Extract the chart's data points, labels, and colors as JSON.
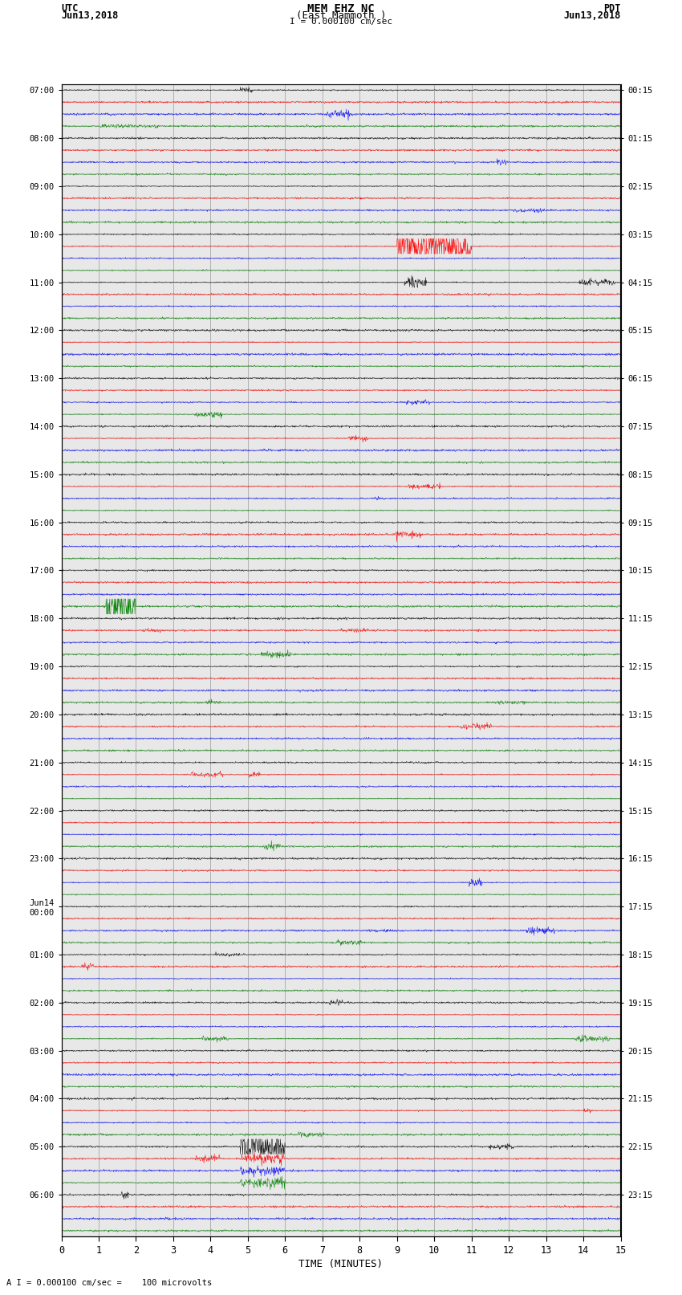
{
  "title_line1": "MEM EHZ NC",
  "title_line2": "(East Mammoth )",
  "title_line3": "I = 0.000100 cm/sec",
  "left_label_line1": "UTC",
  "left_label_line2": "Jun13,2018",
  "right_label_line1": "PDT",
  "right_label_line2": "Jun13,2018",
  "bottom_label": "TIME (MINUTES)",
  "bottom_note": "A I = 0.000100 cm/sec =    100 microvolts",
  "xlabel_ticks": [
    0,
    1,
    2,
    3,
    4,
    5,
    6,
    7,
    8,
    9,
    10,
    11,
    12,
    13,
    14,
    15
  ],
  "left_hour_labels": [
    "07:00",
    "08:00",
    "09:00",
    "10:00",
    "11:00",
    "12:00",
    "13:00",
    "14:00",
    "15:00",
    "16:00",
    "17:00",
    "18:00",
    "19:00",
    "20:00",
    "21:00",
    "22:00",
    "23:00",
    "Jun14\n00:00",
    "01:00",
    "02:00",
    "03:00",
    "04:00",
    "05:00",
    "06:00"
  ],
  "right_hour_labels": [
    "00:15",
    "01:15",
    "02:15",
    "03:15",
    "04:15",
    "05:15",
    "06:15",
    "07:15",
    "08:15",
    "09:15",
    "10:15",
    "11:15",
    "12:15",
    "13:15",
    "14:15",
    "15:15",
    "16:15",
    "17:15",
    "18:15",
    "19:15",
    "20:15",
    "21:15",
    "22:15",
    "23:15"
  ],
  "trace_colors": [
    "black",
    "red",
    "blue",
    "green"
  ],
  "n_traces": 96,
  "n_hours": 24,
  "traces_per_hour": 4,
  "background_color": "white",
  "plot_bg": "#e8e8e8",
  "grid_color": "#999999",
  "figsize": [
    8.5,
    16.13
  ],
  "dpi": 100
}
